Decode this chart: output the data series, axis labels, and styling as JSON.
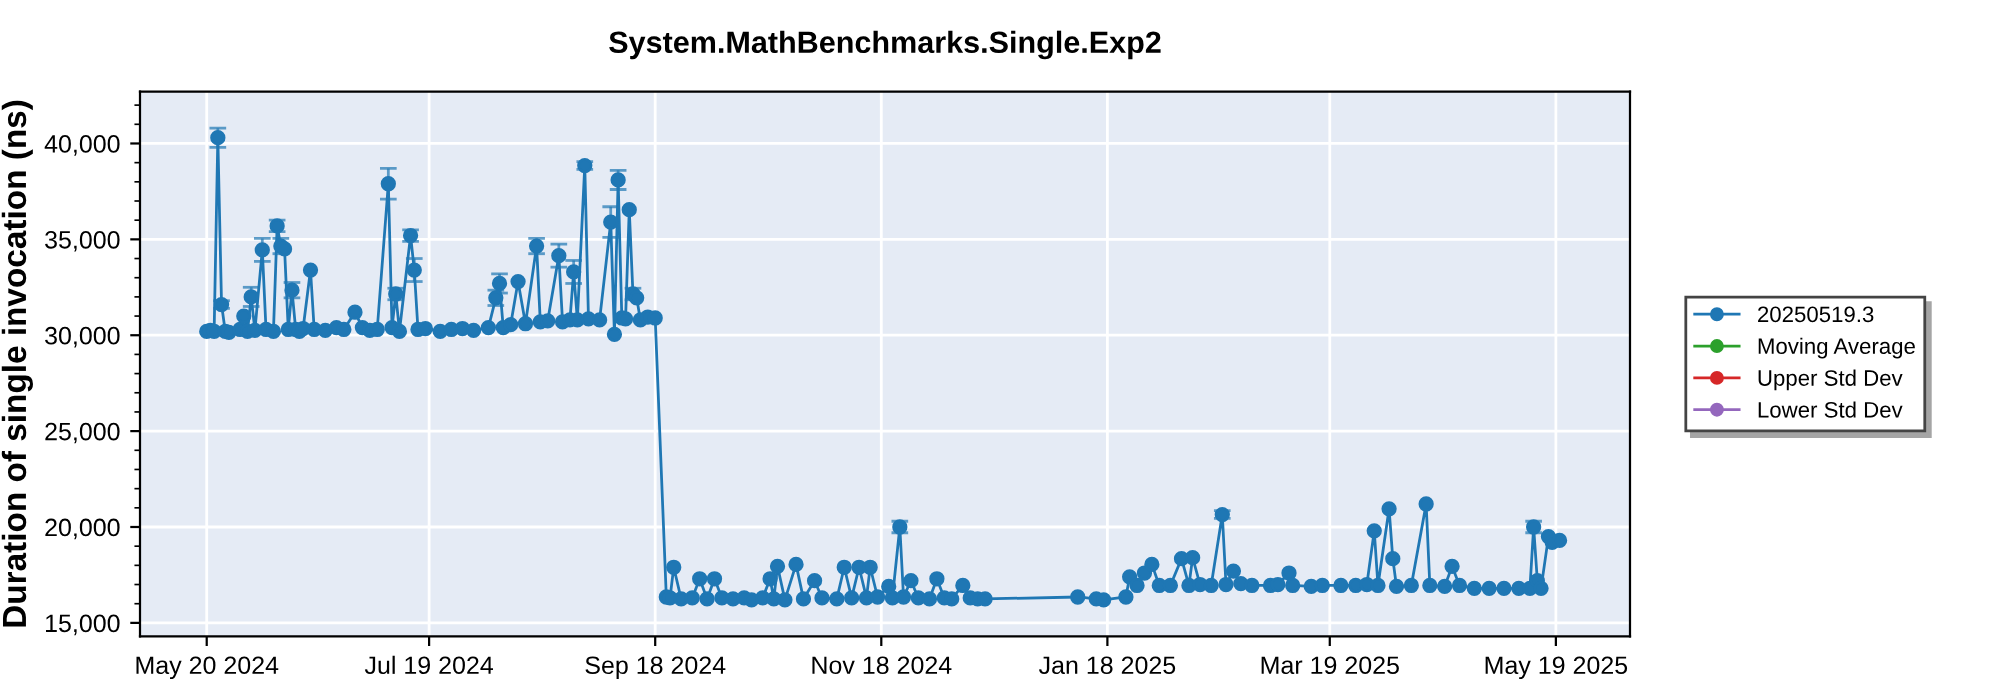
{
  "chart_data": {
    "type": "line",
    "title": "System.MathBenchmarks.Single.Exp2",
    "ylabel": "Duration of single invocation (ns)",
    "x": [
      "2024-05-20",
      "2024-05-21",
      "2024-05-22",
      "2024-05-23",
      "2024-05-24",
      "2024-05-25",
      "2024-05-26",
      "2024-05-29",
      "2024-05-30",
      "2024-05-31",
      "2024-06-01",
      "2024-06-02",
      "2024-06-04",
      "2024-06-05",
      "2024-06-07",
      "2024-06-08",
      "2024-06-09",
      "2024-06-10",
      "2024-06-11",
      "2024-06-12",
      "2024-06-13",
      "2024-06-14",
      "2024-06-15",
      "2024-06-17",
      "2024-06-18",
      "2024-06-21",
      "2024-06-24",
      "2024-06-26",
      "2024-06-29",
      "2024-07-01",
      "2024-07-03",
      "2024-07-05",
      "2024-07-08",
      "2024-07-09",
      "2024-07-10",
      "2024-07-11",
      "2024-07-14",
      "2024-07-15",
      "2024-07-16",
      "2024-07-18",
      "2024-07-22",
      "2024-07-25",
      "2024-07-28",
      "2024-07-31",
      "2024-08-04",
      "2024-08-06",
      "2024-08-07",
      "2024-08-08",
      "2024-08-10",
      "2024-08-12",
      "2024-08-14",
      "2024-08-17",
      "2024-08-18",
      "2024-08-20",
      "2024-08-23",
      "2024-08-24",
      "2024-08-26",
      "2024-08-27",
      "2024-08-28",
      "2024-08-30",
      "2024-08-31",
      "2024-09-03",
      "2024-09-06",
      "2024-09-07",
      "2024-09-08",
      "2024-09-09",
      "2024-09-10",
      "2024-09-11",
      "2024-09-12",
      "2024-09-13",
      "2024-09-14",
      "2024-09-16",
      "2024-09-18",
      "2024-09-21",
      "2024-09-22",
      "2024-09-23",
      "2024-09-25",
      "2024-09-28",
      "2024-09-30",
      "2024-10-02",
      "2024-10-04",
      "2024-10-06",
      "2024-10-09",
      "2024-10-12",
      "2024-10-14",
      "2024-10-17",
      "2024-10-19",
      "2024-10-20",
      "2024-10-21",
      "2024-10-23",
      "2024-10-26",
      "2024-10-28",
      "2024-10-31",
      "2024-11-02",
      "2024-11-06",
      "2024-11-08",
      "2024-11-10",
      "2024-11-12",
      "2024-11-14",
      "2024-11-15",
      "2024-11-17",
      "2024-11-20",
      "2024-11-21",
      "2024-11-23",
      "2024-11-24",
      "2024-11-26",
      "2024-11-28",
      "2024-12-01",
      "2024-12-03",
      "2024-12-05",
      "2024-12-07",
      "2024-12-10",
      "2024-12-12",
      "2024-12-14",
      "2024-12-16",
      "2025-01-10",
      "2025-01-15",
      "2025-01-17",
      "2025-01-23",
      "2025-01-24",
      "2025-01-26",
      "2025-01-28",
      "2025-01-30",
      "2025-02-01",
      "2025-02-04",
      "2025-02-07",
      "2025-02-09",
      "2025-02-10",
      "2025-02-12",
      "2025-02-15",
      "2025-02-18",
      "2025-02-19",
      "2025-02-21",
      "2025-02-23",
      "2025-02-26",
      "2025-03-03",
      "2025-03-05",
      "2025-03-08",
      "2025-03-09",
      "2025-03-14",
      "2025-03-17",
      "2025-03-22",
      "2025-03-26",
      "2025-03-29",
      "2025-03-31",
      "2025-04-01",
      "2025-04-04",
      "2025-04-05",
      "2025-04-06",
      "2025-04-10",
      "2025-04-14",
      "2025-04-15",
      "2025-04-19",
      "2025-04-21",
      "2025-04-23",
      "2025-04-27",
      "2025-05-01",
      "2025-05-05",
      "2025-05-09",
      "2025-05-12",
      "2025-05-13",
      "2025-05-14",
      "2025-05-15",
      "2025-05-17",
      "2025-05-18",
      "2025-05-20"
    ],
    "series": [
      {
        "name": "20250519.3",
        "color": "#1f77b4",
        "values": [
          30200,
          30250,
          30200,
          40300,
          31600,
          30200,
          30150,
          30300,
          31000,
          30200,
          32000,
          30250,
          34450,
          30300,
          30200,
          35700,
          34650,
          34500,
          30300,
          32350,
          30300,
          30200,
          30350,
          33400,
          30300,
          30250,
          30400,
          30300,
          31200,
          30400,
          30250,
          30300,
          37900,
          30400,
          32150,
          30200,
          35200,
          33400,
          30300,
          30350,
          30200,
          30300,
          30350,
          30250,
          30400,
          31950,
          32700,
          30400,
          30550,
          32800,
          30600,
          34650,
          30700,
          30750,
          34150,
          30700,
          30800,
          33300,
          30800,
          38850,
          30850,
          30800,
          35900,
          30050,
          38100,
          30900,
          30850,
          36550,
          32150,
          31950,
          30800,
          30950,
          30900,
          16350,
          16300,
          17900,
          16250,
          16300,
          17300,
          16250,
          17300,
          16300,
          16250,
          16300,
          16200,
          16300,
          17300,
          16250,
          17950,
          16200,
          18050,
          16250,
          17200,
          16300,
          16250,
          17900,
          16300,
          17900,
          16300,
          17900,
          16350,
          16900,
          16300,
          20000,
          16350,
          17200,
          16300,
          16250,
          17300,
          16300,
          16250,
          16950,
          16300,
          16250,
          16250,
          16350,
          16250,
          16200,
          16350,
          17400,
          16950,
          17600,
          18050,
          16950,
          16950,
          18350,
          16950,
          18400,
          17000,
          16950,
          20650,
          17000,
          17700,
          17050,
          16950,
          16950,
          17000,
          17600,
          16950,
          16900,
          16950,
          16950,
          16950,
          17000,
          19800,
          16950,
          20950,
          18350,
          16900,
          16950,
          21200,
          16950,
          16900,
          17950,
          16950,
          16800,
          16800,
          16800,
          16800,
          16800,
          20000,
          17200,
          16800,
          19500,
          19200,
          19300
        ],
        "errors": [
          null,
          null,
          null,
          500,
          200,
          null,
          null,
          null,
          null,
          null,
          500,
          null,
          600,
          null,
          null,
          300,
          400,
          null,
          null,
          400,
          null,
          null,
          null,
          null,
          null,
          null,
          null,
          null,
          null,
          null,
          null,
          null,
          800,
          null,
          300,
          null,
          300,
          600,
          null,
          null,
          null,
          null,
          null,
          null,
          null,
          400,
          500,
          null,
          null,
          null,
          null,
          400,
          null,
          null,
          600,
          null,
          null,
          600,
          null,
          200,
          null,
          null,
          800,
          null,
          500,
          null,
          null,
          null,
          300,
          null,
          null,
          null,
          null,
          null,
          null,
          null,
          null,
          null,
          null,
          null,
          null,
          null,
          null,
          null,
          null,
          null,
          null,
          null,
          null,
          null,
          null,
          null,
          null,
          null,
          null,
          null,
          null,
          null,
          null,
          null,
          null,
          null,
          null,
          300,
          null,
          null,
          null,
          null,
          null,
          null,
          null,
          null,
          null,
          null,
          null,
          null,
          null,
          null,
          null,
          null,
          null,
          null,
          null,
          null,
          null,
          null,
          null,
          null,
          null,
          null,
          200,
          null,
          null,
          null,
          null,
          null,
          null,
          null,
          null,
          null,
          null,
          null,
          null,
          null,
          null,
          null,
          null,
          null,
          null,
          null,
          null,
          null,
          null,
          null,
          null,
          null,
          null,
          null,
          null,
          null,
          300,
          null,
          null,
          null,
          null,
          null
        ]
      },
      {
        "name": "Moving Average",
        "color": "#2ca02c",
        "values": [
          null,
          null,
          null,
          null,
          null,
          null,
          null,
          null,
          null,
          null,
          null,
          null,
          null,
          null,
          null,
          null,
          null,
          null,
          null,
          null,
          null,
          null,
          null,
          null,
          null,
          null,
          null,
          null,
          null,
          null,
          null,
          null,
          null,
          null,
          null,
          null,
          null,
          null,
          null,
          null,
          null,
          null,
          null,
          null,
          null,
          null,
          null,
          null,
          null,
          null,
          null,
          null,
          null,
          null,
          null,
          null,
          null,
          null,
          null,
          null,
          null,
          null,
          null,
          null,
          null,
          null,
          null,
          null,
          null,
          null,
          null,
          null,
          null,
          null,
          null,
          null,
          null,
          null,
          null,
          null,
          null,
          null,
          null,
          null,
          null,
          null,
          null,
          null,
          null,
          null,
          null,
          null,
          null,
          null,
          null,
          null,
          null,
          null,
          null,
          null,
          null,
          null,
          null,
          null,
          null,
          null,
          null,
          null,
          null,
          null,
          null,
          null,
          null,
          null,
          null,
          null,
          null,
          null,
          null,
          null,
          null,
          null,
          null,
          null,
          null,
          null,
          null,
          null,
          null,
          null,
          null,
          null,
          null,
          null,
          null,
          null,
          null,
          null,
          null,
          null,
          null,
          null,
          null,
          null,
          null,
          null,
          null,
          null,
          null,
          null,
          null,
          null,
          null,
          null,
          null,
          null,
          null,
          null,
          null,
          null,
          null,
          null,
          null,
          null,
          null,
          null
        ]
      },
      {
        "name": "Upper Std Dev",
        "color": "#d62728",
        "values": [
          null,
          null,
          null,
          null,
          null,
          null,
          null,
          null,
          null,
          null,
          null,
          null,
          null,
          null,
          null,
          null,
          null,
          null,
          null,
          null,
          null,
          null,
          null,
          null,
          null,
          null,
          null,
          null,
          null,
          null,
          null,
          null,
          null,
          null,
          null,
          null,
          null,
          null,
          null,
          null,
          null,
          null,
          null,
          null,
          null,
          null,
          null,
          null,
          null,
          null,
          null,
          null,
          null,
          null,
          null,
          null,
          null,
          null,
          null,
          null,
          null,
          null,
          null,
          null,
          null,
          null,
          null,
          null,
          null,
          null,
          null,
          null,
          null,
          null,
          null,
          null,
          null,
          null,
          null,
          null,
          null,
          null,
          null,
          null,
          null,
          null,
          null,
          null,
          null,
          null,
          null,
          null,
          null,
          null,
          null,
          null,
          null,
          null,
          null,
          null,
          null,
          null,
          null,
          null,
          null,
          null,
          null,
          null,
          null,
          null,
          null,
          null,
          null,
          null,
          null,
          null,
          null,
          null,
          null,
          null,
          null,
          null,
          null,
          null,
          null,
          null,
          null,
          null,
          null,
          null,
          null,
          null,
          null,
          null,
          null,
          null,
          null,
          null,
          null,
          null,
          null,
          null,
          null,
          null,
          null,
          null,
          null,
          null,
          null,
          null,
          null,
          null,
          null,
          null,
          null,
          null,
          null,
          null,
          null,
          null,
          null,
          null,
          null,
          null,
          null,
          null
        ]
      },
      {
        "name": "Lower Std Dev",
        "color": "#9467bd",
        "values": [
          null,
          null,
          null,
          null,
          null,
          null,
          null,
          null,
          null,
          null,
          null,
          null,
          null,
          null,
          null,
          null,
          null,
          null,
          null,
          null,
          null,
          null,
          null,
          null,
          null,
          null,
          null,
          null,
          null,
          null,
          null,
          null,
          null,
          null,
          null,
          null,
          null,
          null,
          null,
          null,
          null,
          null,
          null,
          null,
          null,
          null,
          null,
          null,
          null,
          null,
          null,
          null,
          null,
          null,
          null,
          null,
          null,
          null,
          null,
          null,
          null,
          null,
          null,
          null,
          null,
          null,
          null,
          null,
          null,
          null,
          null,
          null,
          null,
          null,
          null,
          null,
          null,
          null,
          null,
          null,
          null,
          null,
          null,
          null,
          null,
          null,
          null,
          null,
          null,
          null,
          null,
          null,
          null,
          null,
          null,
          null,
          null,
          null,
          null,
          null,
          null,
          null,
          null,
          null,
          null,
          null,
          null,
          null,
          null,
          null,
          null,
          null,
          null,
          null,
          null,
          null,
          null,
          null,
          null,
          null,
          null,
          null,
          null,
          null,
          null,
          null,
          null,
          null,
          null,
          null,
          null,
          null,
          null,
          null,
          null,
          null,
          null,
          null,
          null,
          null,
          null,
          null,
          null,
          null,
          null,
          null,
          null,
          null,
          null,
          null,
          null,
          null,
          null,
          null,
          null,
          null,
          null,
          null,
          null,
          null,
          null,
          null,
          null,
          null,
          null,
          null
        ]
      }
    ],
    "xlim": [
      "2024-05-02",
      "2025-06-08"
    ],
    "xticks": [
      {
        "value": "2024-05-20",
        "label": "May 20 2024"
      },
      {
        "value": "2024-07-19",
        "label": "Jul 19 2024"
      },
      {
        "value": "2024-09-18",
        "label": "Sep 18 2024"
      },
      {
        "value": "2024-11-18",
        "label": "Nov 18 2024"
      },
      {
        "value": "2025-01-18",
        "label": "Jan 18 2025"
      },
      {
        "value": "2025-03-19",
        "label": "Mar 19 2025"
      },
      {
        "value": "2025-05-19",
        "label": "May 19 2025"
      }
    ],
    "ylim": [
      14300,
      42700
    ],
    "yticks": [
      {
        "value": 15000,
        "label": "15,000"
      },
      {
        "value": 20000,
        "label": "20,000"
      },
      {
        "value": 25000,
        "label": "25,000"
      },
      {
        "value": 30000,
        "label": "30,000"
      },
      {
        "value": 35000,
        "label": "35,000"
      },
      {
        "value": 40000,
        "label": "40,000"
      }
    ],
    "grid": true,
    "legend": "right",
    "marker": "circle",
    "line_style": "solid"
  }
}
